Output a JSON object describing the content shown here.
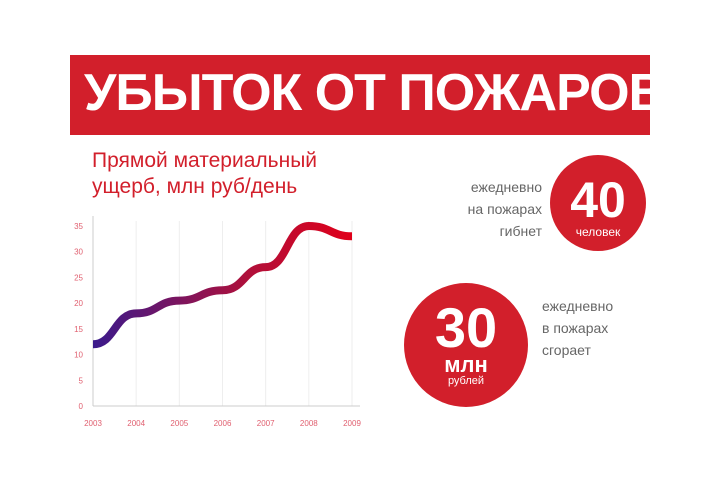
{
  "title": "УБЫТОК ОТ ПОЖАРОВ",
  "stat_deaths": {
    "number": "40",
    "unit": "человек",
    "lines": [
      "ежедневно",
      "на пожарах",
      "гибнет"
    ]
  },
  "stat_money": {
    "number": "30",
    "unit": "млн",
    "unit2": "рублей",
    "lines": [
      "ежедневно",
      "в пожарах",
      "сгорает"
    ]
  },
  "colors": {
    "accent": "#d21f2b",
    "line_start": "#3a1a8c",
    "line_end": "#e0001a"
  },
  "chart_data": {
    "type": "line",
    "title": "Прямой материальный ущерб, млн руб/день",
    "x": [
      "2003",
      "2004",
      "2005",
      "2006",
      "2007",
      "2008",
      "2009"
    ],
    "values": [
      12,
      18,
      20.5,
      22.5,
      27,
      35,
      33
    ],
    "yticks": [
      0,
      5,
      10,
      15,
      20,
      25,
      30,
      35
    ],
    "ylim": [
      0,
      35
    ],
    "grid": "vertical"
  }
}
